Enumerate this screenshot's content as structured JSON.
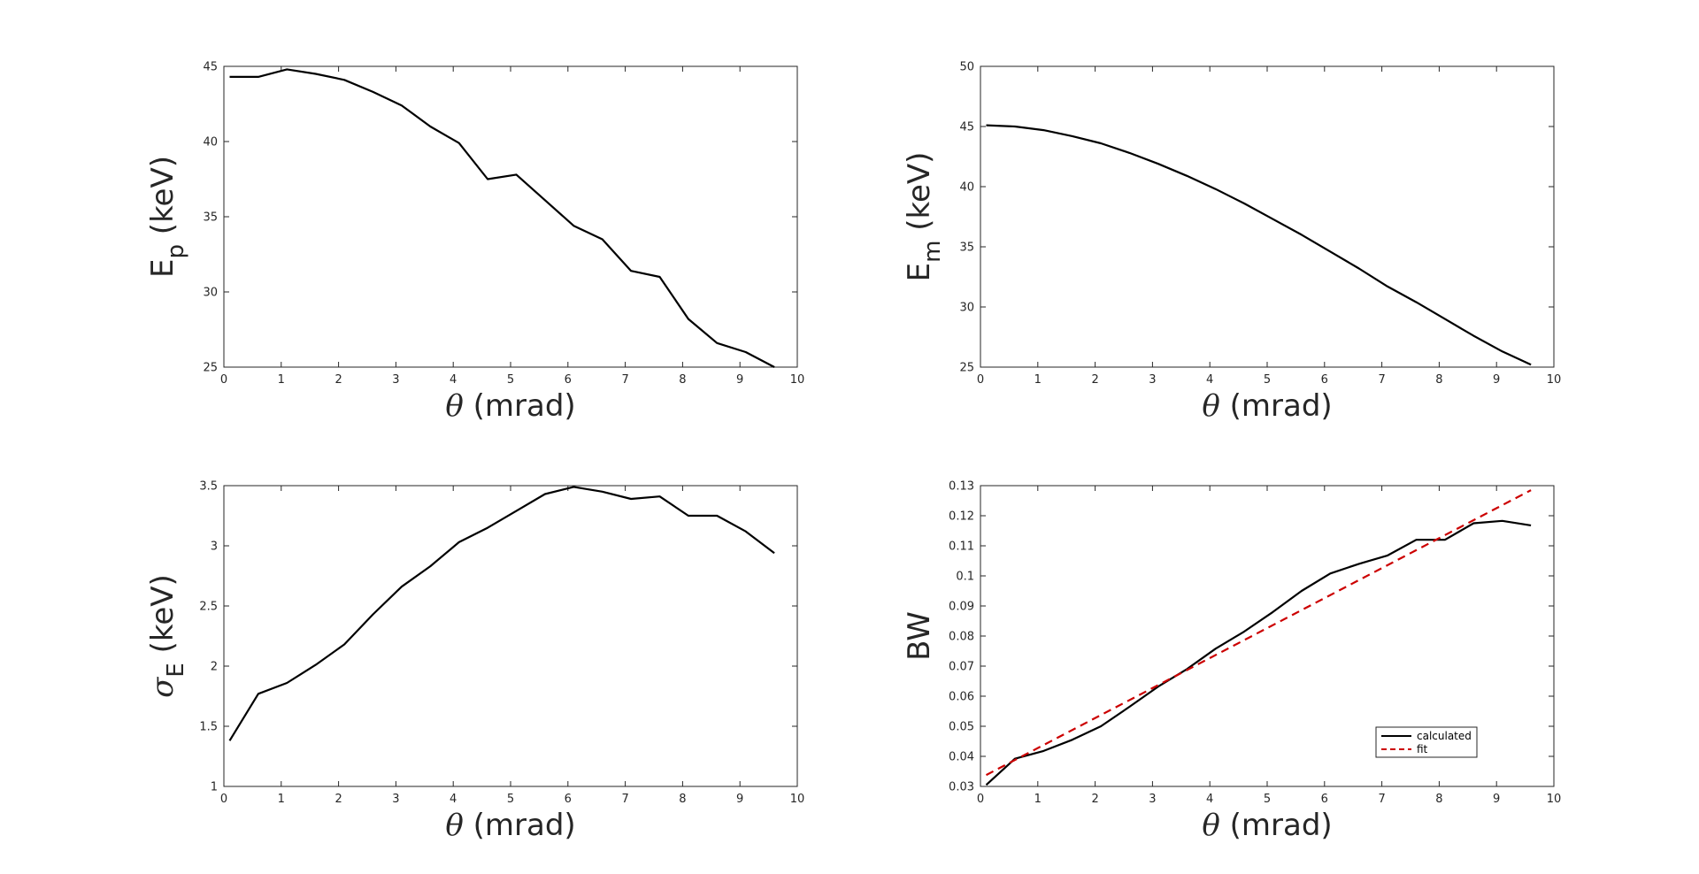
{
  "figure": {
    "background": "#ffffff",
    "axis_color": "#262626"
  },
  "chart_data": [
    {
      "id": "ep",
      "type": "line",
      "title": "",
      "xlabel": "θ (mrad)",
      "ylabel": "E_p (keV)",
      "ylabel_main": "E",
      "ylabel_sub": "p",
      "ylabel_rest": " (keV)",
      "xlim": [
        0,
        10
      ],
      "ylim": [
        25,
        45
      ],
      "xticks": [
        0,
        1,
        2,
        3,
        4,
        5,
        6,
        7,
        8,
        9,
        10
      ],
      "yticks": [
        25,
        30,
        35,
        40,
        45
      ],
      "ytick_labels": [
        "25",
        "30",
        "35",
        "40",
        "45"
      ],
      "grid": false,
      "series": [
        {
          "color": "#000000",
          "dash": "solid",
          "x": [
            0.1,
            0.6,
            1.1,
            1.6,
            2.1,
            2.6,
            3.1,
            3.6,
            4.1,
            4.6,
            5.1,
            5.6,
            6.1,
            6.6,
            7.1,
            7.6,
            8.1,
            8.6,
            9.1,
            9.6
          ],
          "y": [
            44.3,
            44.3,
            44.8,
            44.5,
            44.1,
            43.3,
            42.4,
            41.0,
            39.9,
            37.5,
            37.8,
            36.1,
            34.4,
            33.5,
            31.4,
            31.0,
            28.2,
            26.6,
            26.0,
            25.0
          ]
        }
      ]
    },
    {
      "id": "em",
      "type": "line",
      "title": "",
      "xlabel": "θ (mrad)",
      "ylabel": "E_m (keV)",
      "ylabel_main": "E",
      "ylabel_sub": "m",
      "ylabel_rest": " (keV)",
      "xlim": [
        0,
        10
      ],
      "ylim": [
        25,
        50
      ],
      "xticks": [
        0,
        1,
        2,
        3,
        4,
        5,
        6,
        7,
        8,
        9,
        10
      ],
      "yticks": [
        25,
        30,
        35,
        40,
        45,
        50
      ],
      "ytick_labels": [
        "25",
        "30",
        "35",
        "40",
        "45",
        "50"
      ],
      "grid": false,
      "series": [
        {
          "color": "#000000",
          "dash": "solid",
          "x": [
            0.1,
            0.6,
            1.1,
            1.6,
            2.1,
            2.6,
            3.1,
            3.6,
            4.1,
            4.6,
            5.1,
            5.6,
            6.1,
            6.6,
            7.1,
            7.6,
            8.1,
            8.6,
            9.1,
            9.6
          ],
          "y": [
            45.1,
            45.0,
            44.7,
            44.2,
            43.6,
            42.8,
            41.9,
            40.9,
            39.8,
            38.6,
            37.3,
            36.0,
            34.6,
            33.2,
            31.7,
            30.4,
            29.0,
            27.6,
            26.3,
            25.2
          ]
        }
      ]
    },
    {
      "id": "sigma",
      "type": "line",
      "title": "",
      "xlabel": "θ (mrad)",
      "ylabel": "σ_E (keV)",
      "ylabel_main": "σ",
      "ylabel_sub": "E",
      "ylabel_rest": " (keV)",
      "xlim": [
        0,
        10
      ],
      "ylim": [
        1,
        3.5
      ],
      "xticks": [
        0,
        1,
        2,
        3,
        4,
        5,
        6,
        7,
        8,
        9,
        10
      ],
      "yticks": [
        1,
        1.5,
        2,
        2.5,
        3,
        3.5
      ],
      "ytick_labels": [
        "1",
        "1.5",
        "2",
        "2.5",
        "3",
        "3.5"
      ],
      "grid": false,
      "series": [
        {
          "color": "#000000",
          "dash": "solid",
          "x": [
            0.1,
            0.6,
            1.1,
            1.6,
            2.1,
            2.6,
            3.1,
            3.6,
            4.1,
            4.6,
            5.1,
            5.6,
            6.1,
            6.6,
            7.1,
            7.6,
            8.1,
            8.6,
            9.1,
            9.6
          ],
          "y": [
            1.38,
            1.77,
            1.86,
            2.01,
            2.18,
            2.43,
            2.66,
            2.83,
            3.03,
            3.15,
            3.29,
            3.43,
            3.49,
            3.45,
            3.39,
            3.41,
            3.25,
            3.25,
            3.12,
            2.94
          ]
        }
      ]
    },
    {
      "id": "bw",
      "type": "line",
      "title": "",
      "xlabel": "θ (mrad)",
      "ylabel": "BW",
      "ylabel_main": "BW",
      "ylabel_sub": "",
      "ylabel_rest": "",
      "xlim": [
        0,
        10
      ],
      "ylim": [
        0.03,
        0.13
      ],
      "xticks": [
        0,
        1,
        2,
        3,
        4,
        5,
        6,
        7,
        8,
        9,
        10
      ],
      "yticks": [
        0.03,
        0.04,
        0.05,
        0.06,
        0.07,
        0.08,
        0.09,
        0.1,
        0.11,
        0.12,
        0.13
      ],
      "ytick_labels": [
        "0.03",
        "0.04",
        "0.05",
        "0.06",
        "0.07",
        "0.08",
        "0.09",
        "0.1",
        "0.11",
        "0.12",
        "0.13"
      ],
      "grid": false,
      "legend": {
        "placement": "bottom-right"
      },
      "series": [
        {
          "name": "calculated",
          "color": "#000000",
          "dash": "solid",
          "x": [
            0.1,
            0.6,
            1.1,
            1.6,
            2.1,
            2.6,
            3.1,
            3.6,
            4.1,
            4.6,
            5.1,
            5.6,
            6.1,
            6.6,
            7.1,
            7.6,
            8.1,
            8.6,
            9.1,
            9.6
          ],
          "y": [
            0.0305,
            0.0392,
            0.0418,
            0.0455,
            0.05,
            0.0565,
            0.0632,
            0.069,
            0.0758,
            0.0815,
            0.088,
            0.095,
            0.1008,
            0.104,
            0.1068,
            0.112,
            0.112,
            0.1175,
            0.1183,
            0.1168
          ]
        },
        {
          "name": "fit",
          "color": "#cc0000",
          "dash": "dashed",
          "x": [
            0.1,
            9.6
          ],
          "y": [
            0.0338,
            0.1285
          ]
        }
      ]
    }
  ]
}
